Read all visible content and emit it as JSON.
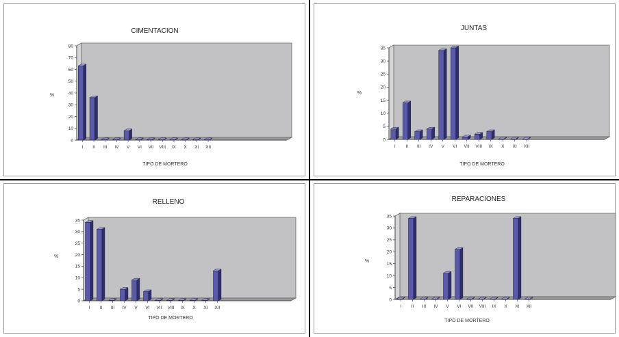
{
  "colors": {
    "plot_bg": "#c2c2c4",
    "floor": "#9a9a9c",
    "bar_front": "#5a5aa8",
    "bar_top": "#9a9ad8",
    "bar_side": "#2e2e6a"
  },
  "chart_data": [
    {
      "type": "bar",
      "title": "CIMENTACION",
      "xlabel": "TIPO DE MORTERO",
      "ylabel": "%",
      "ylim": [
        0,
        80
      ],
      "yticks": [
        "0",
        "10",
        "20",
        "30",
        "40",
        "50",
        "60",
        "70",
        "80"
      ],
      "categories": [
        "I",
        "II",
        "III",
        "IV",
        "V",
        "VI",
        "VII",
        "VIII",
        "IX",
        "X",
        "XI",
        "XII"
      ],
      "values": [
        63,
        36,
        0,
        0,
        8,
        0,
        0,
        0,
        0,
        0,
        0,
        0
      ]
    },
    {
      "type": "bar",
      "title": "JUNTAS",
      "xlabel": "TIPO DE MORTERO",
      "ylabel": "%",
      "ylim": [
        0,
        35
      ],
      "yticks": [
        "0",
        "5",
        "10",
        "15",
        "20",
        "25",
        "30",
        "35"
      ],
      "categories": [
        "I",
        "II",
        "III",
        "IV",
        "V",
        "VI",
        "VII",
        "VIII",
        "IX",
        "X",
        "XI",
        "XII"
      ],
      "values": [
        4,
        14,
        3,
        4,
        34,
        35,
        1,
        2,
        3,
        0,
        0,
        0
      ]
    },
    {
      "type": "bar",
      "title": "RELLENO",
      "xlabel": "TIPO DE MORTERO",
      "ylabel": "%",
      "ylim": [
        0,
        35
      ],
      "yticks": [
        "0",
        "5",
        "10",
        "15",
        "20",
        "25",
        "30",
        "35"
      ],
      "categories": [
        "I",
        "II",
        "III",
        "IV",
        "V",
        "VI",
        "VII",
        "VIII",
        "IX",
        "X",
        "XI",
        "XII"
      ],
      "values": [
        34,
        31,
        0,
        5,
        9,
        4,
        0,
        0,
        0,
        0,
        0,
        13
      ]
    },
    {
      "type": "bar",
      "title": "REPARACIONES",
      "xlabel": "TIPO DE MORTERO",
      "ylabel": "%",
      "ylim": [
        0,
        35
      ],
      "yticks": [
        "0",
        "5",
        "10",
        "15",
        "20",
        "25",
        "30",
        "35"
      ],
      "categories": [
        "I",
        "II",
        "III",
        "IV",
        "V",
        "VI",
        "VII",
        "VIII",
        "IX",
        "X",
        "XI",
        "XII"
      ],
      "values": [
        0,
        34,
        0,
        0,
        11,
        21,
        0,
        0,
        0,
        0,
        34,
        0
      ]
    }
  ]
}
